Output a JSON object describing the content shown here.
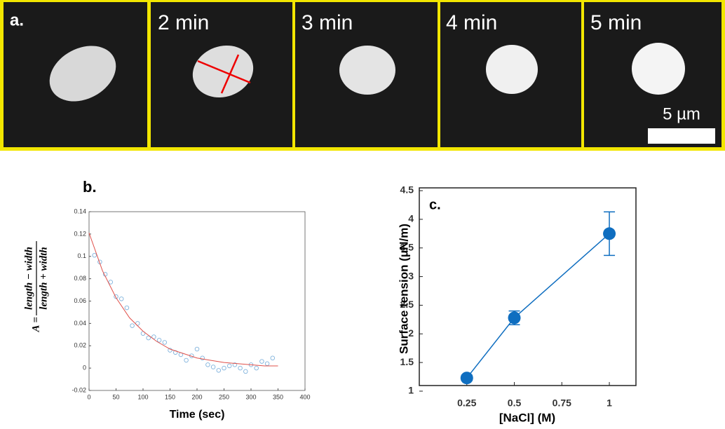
{
  "panel_a": {
    "label": "a.",
    "frames": [
      "2 min",
      "3 min",
      "4 min",
      "5 min"
    ],
    "scale_bar": "5 µm"
  },
  "chart_data": [
    {
      "type": "scatter",
      "label": "b.",
      "xlabel": "Time (sec)",
      "ylabel": {
        "lhs": "A =",
        "numerator": "length − width",
        "denominator": "length + width"
      },
      "xlim": [
        0,
        400
      ],
      "xticks": [
        0,
        50,
        100,
        150,
        200,
        250,
        300,
        350,
        400
      ],
      "ylim": [
        -0.02,
        0.14
      ],
      "yticks": [
        -0.02,
        0,
        0.02,
        0.04,
        0.06,
        0.08,
        0.1,
        0.12,
        0.14
      ],
      "series": [
        {
          "kind": "points",
          "color": "#7fb2dc",
          "x": [
            10,
            20,
            30,
            40,
            50,
            60,
            70,
            80,
            90,
            100,
            110,
            120,
            130,
            140,
            150,
            160,
            170,
            180,
            190,
            200,
            210,
            220,
            230,
            240,
            250,
            260,
            270,
            280,
            290,
            300,
            310,
            320,
            330,
            340
          ],
          "values": [
            0.101,
            0.095,
            0.084,
            0.077,
            0.064,
            0.062,
            0.054,
            0.038,
            0.04,
            0.031,
            0.027,
            0.028,
            0.025,
            0.023,
            0.016,
            0.014,
            0.012,
            0.007,
            0.011,
            0.017,
            0.009,
            0.003,
            0.001,
            -0.002,
            0.0,
            0.002,
            0.003,
            0.0,
            -0.003,
            0.003,
            0.0,
            0.006,
            0.004,
            0.009
          ]
        },
        {
          "kind": "line",
          "color": "#e0504a",
          "x": [
            0,
            25,
            50,
            75,
            100,
            125,
            150,
            175,
            200,
            225,
            250,
            275,
            300,
            325,
            350
          ],
          "values": [
            0.121,
            0.087,
            0.063,
            0.045,
            0.033,
            0.024,
            0.017,
            0.013,
            0.009,
            0.007,
            0.005,
            0.004,
            0.003,
            0.002,
            0.002
          ]
        }
      ]
    },
    {
      "type": "errorline",
      "label": "c.",
      "xlabel": "[NaCl] (M)",
      "ylabel": "Surface tension (μN/m)",
      "xlim": [
        0,
        1.14
      ],
      "xticks": [
        0.25,
        0.5,
        0.75,
        1
      ],
      "ylim": [
        1,
        4.5
      ],
      "yticks": [
        1,
        1.5,
        2,
        2.5,
        3,
        3.5,
        4,
        4.5
      ],
      "color": "#0f6ec0",
      "x": [
        0.25,
        0.5,
        1
      ],
      "values": [
        1.23,
        2.28,
        3.75
      ],
      "errors": [
        0.05,
        0.12,
        0.38
      ]
    }
  ]
}
